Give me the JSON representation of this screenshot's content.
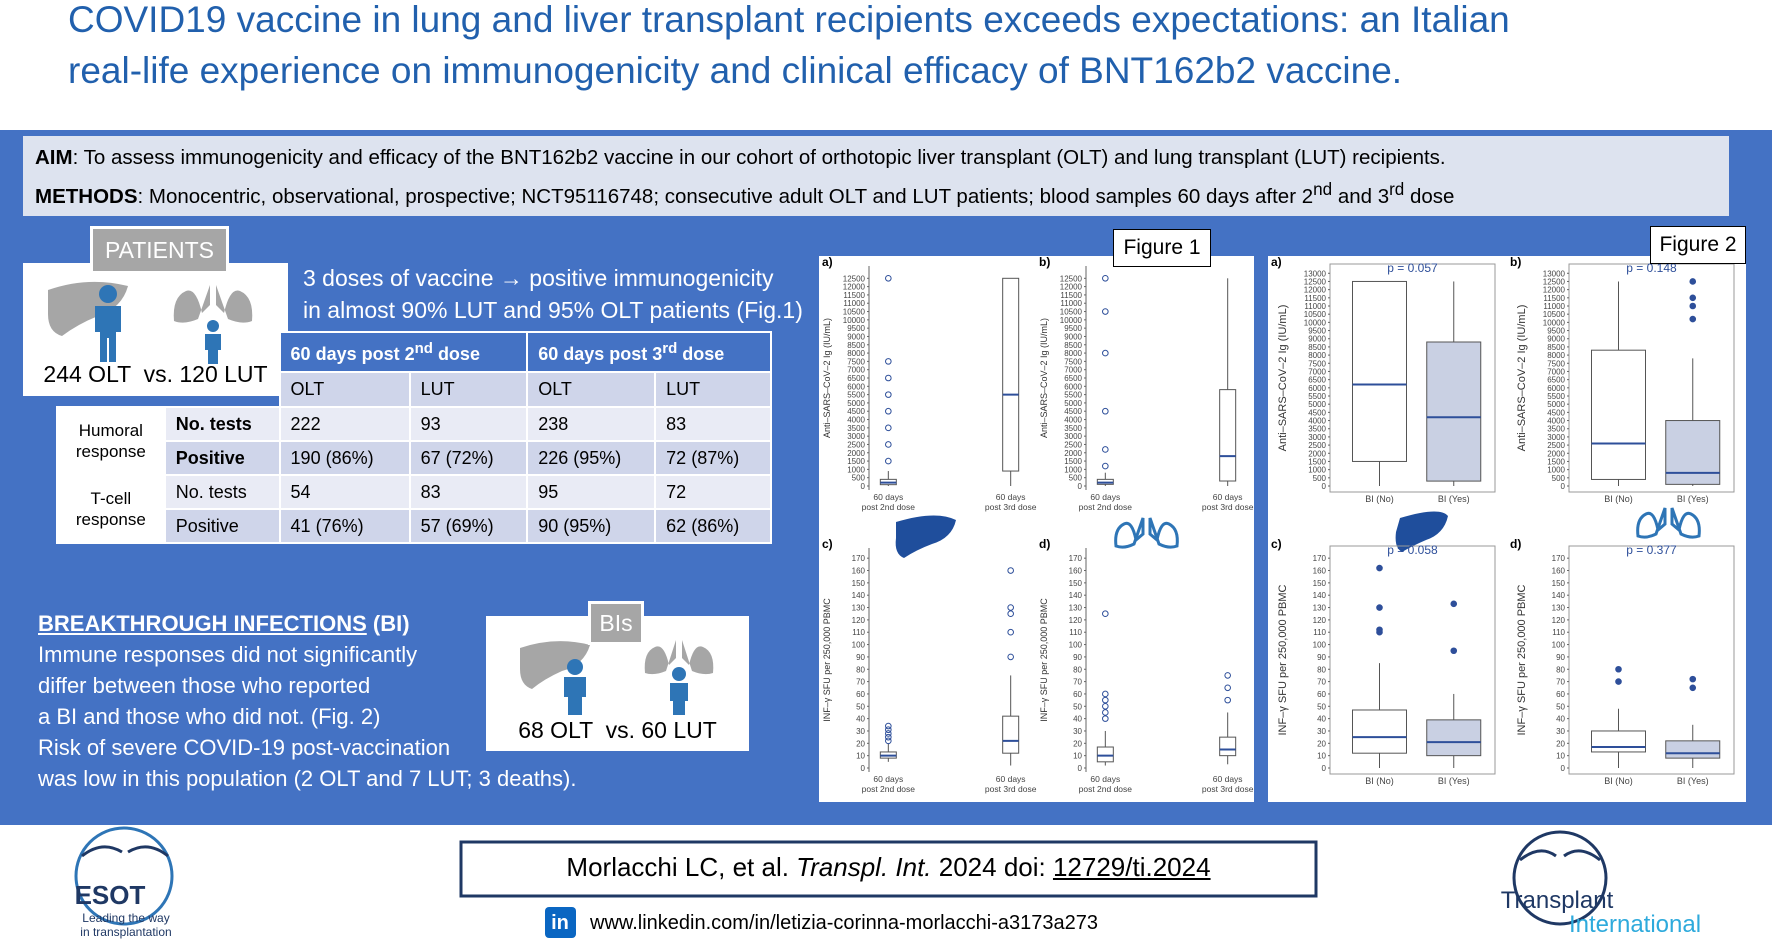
{
  "header": {
    "title_line1": "COVID19 vaccine in lung and liver transplant recipients exceeds expectations: an Italian",
    "title_line2": "real-life experience on immunogenicity and clinical efficacy of BNT162b2 vaccine."
  },
  "aim": {
    "label": "AIM",
    "text": ": To assess immunogenicity and efficacy of the BNT162b2 vaccine in our cohort of orthotopic liver transplant (OLT) and lung transplant (LUT) recipients."
  },
  "methods": {
    "label": "METHODS",
    "text": ": Monocentric, observational, prospective; NCT95116748; consecutive adult OLT and LUT patients; blood samples 60 days after 2",
    "sup1": "nd",
    "mid": " and 3",
    "sup2": "rd",
    "end": " dose"
  },
  "patients": {
    "tab": "PATIENTS",
    "summary": "244 OLT  vs. 120 LUT"
  },
  "highlight": {
    "line1": "3 doses of vaccine → positive immunogenicity",
    "line2": "in almost 90% LUT and 95% OLT patients (Fig.1)"
  },
  "table": {
    "header": [
      {
        "text": "60 days post 2",
        "sup": "nd",
        "end": " dose"
      },
      {
        "text": "60 days post 3",
        "sup": "rd",
        "end": " dose"
      }
    ],
    "subheader": [
      "OLT",
      "LUT",
      "OLT",
      "LUT"
    ],
    "groups": [
      {
        "name": [
          "Humoral",
          "response"
        ],
        "rows": [
          {
            "label": "No. tests",
            "values": [
              222,
              93,
              238,
              83
            ]
          },
          {
            "label": "Positive",
            "values": [
              "190 (86%)",
              "67 (72%)",
              "226 (95%)",
              "72 (87%)"
            ]
          }
        ]
      },
      {
        "name": [
          "T-cell",
          "response"
        ],
        "rows": [
          {
            "label": "No. tests",
            "values": [
              54,
              83,
              95,
              72
            ]
          },
          {
            "label": "Positive",
            "values": [
              "41 (76%)",
              "57 (69%)",
              "90 (95%)",
              "62 (86%)"
            ]
          }
        ]
      }
    ]
  },
  "bi": {
    "title": "BREAKTHROUGH INFECTIONS",
    "abbr": " (BI)",
    "lines": [
      "Immune responses did not significantly",
      "differ between those who reported",
      "a BI and those who did not. (Fig. 2)",
      "Risk of severe COVID-19 post-vaccination",
      "was low in this population (2 OLT and 7 LUT; 3 deaths)."
    ]
  },
  "bis": {
    "tab": "BIs",
    "summary": "68 OLT  vs. 60 LUT"
  },
  "figures": {
    "fig1": "Figure 1",
    "fig2": "Figure 2"
  },
  "footer": {
    "authors": "Morlacchi LC, et al. ",
    "journal": "Transpl. Int.",
    "year_doi": " 2024 doi: ",
    "doi": "12729/ti.2024",
    "linkedin_icon": "in",
    "linkedin": "www.linkedin.com/in/letizia-corinna-morlacchi-a3173a273",
    "esot": "ESOT",
    "esot_tag1": "Leading the way",
    "esot_tag2": "in transplantation",
    "ti1": "Transplant",
    "ti2": "International"
  },
  "chart_data": [
    {
      "type": "box",
      "label": "a)",
      "ylabel": "Anti–SARS–CoV–2 Ig (IU/mL)",
      "categories": [
        [
          "60 days",
          "post 2nd dose"
        ],
        [
          "60 days",
          "post 3rd dose"
        ]
      ],
      "ylim": [
        0,
        13000
      ],
      "yticks": [
        0,
        500,
        1000,
        1500,
        2000,
        2500,
        3000,
        3500,
        4000,
        4500,
        5000,
        5500,
        6000,
        6500,
        7000,
        7500,
        8000,
        8500,
        9000,
        9500,
        10000,
        10500,
        11000,
        11500,
        12000,
        12500
      ],
      "frame": false,
      "boxes": [
        {
          "min": 0,
          "q1": 80,
          "median": 200,
          "q3": 400,
          "max": 900,
          "color": "#ffffff",
          "outliers": [
            1500,
            2500,
            3500,
            4500,
            5500,
            6500,
            7500,
            12500
          ]
        },
        {
          "min": 0,
          "q1": 900,
          "median": 5500,
          "q3": 12500,
          "max": 12500,
          "color": "#ffffff",
          "outliers": []
        }
      ]
    },
    {
      "type": "box",
      "label": "b)",
      "ylabel": "Anti–SARS–CoV–2 Ig (IU/mL)",
      "categories": [
        [
          "60 days",
          "post 2nd dose"
        ],
        [
          "60 days",
          "post 3rd dose"
        ]
      ],
      "ylim": [
        0,
        13000
      ],
      "yticks": [
        0,
        500,
        1000,
        1500,
        2000,
        2500,
        3000,
        3500,
        4000,
        4500,
        5000,
        5500,
        6000,
        6500,
        7000,
        7500,
        8000,
        8500,
        9000,
        9500,
        10000,
        10500,
        11000,
        11500,
        12000,
        12500
      ],
      "frame": false,
      "boxes": [
        {
          "min": 0,
          "q1": 100,
          "median": 200,
          "q3": 400,
          "max": 800,
          "color": "#ffffff",
          "outliers": [
            1200,
            2200,
            4500,
            8000,
            10500,
            12500
          ]
        },
        {
          "min": 0,
          "q1": 300,
          "median": 1800,
          "q3": 5800,
          "max": 12500,
          "color": "#ffffff",
          "outliers": []
        }
      ]
    },
    {
      "type": "box",
      "label": "c)",
      "ylabel": "INF–γ SFU per 250,000 PBMC",
      "categories": [
        [
          "60 days",
          "post 2nd dose"
        ],
        [
          "60 days",
          "post 3rd dose"
        ]
      ],
      "ylim": [
        0,
        175
      ],
      "yticks": [
        0,
        10,
        20,
        30,
        40,
        50,
        60,
        70,
        80,
        90,
        100,
        110,
        120,
        130,
        140,
        150,
        160,
        170
      ],
      "frame": false,
      "boxes": [
        {
          "min": 5,
          "q1": 8,
          "median": 10,
          "q3": 13,
          "max": 20,
          "color": "#ffffff",
          "outliers": [
            22,
            25,
            28,
            31,
            34
          ]
        },
        {
          "min": 2,
          "q1": 12,
          "median": 22,
          "q3": 42,
          "max": 75,
          "color": "#ffffff",
          "outliers": [
            90,
            110,
            125,
            130,
            160
          ]
        }
      ]
    },
    {
      "type": "box",
      "label": "d)",
      "ylabel": "INF–γ SFU per 250,000 PBMC",
      "categories": [
        [
          "60 days",
          "post 2nd dose"
        ],
        [
          "60 days",
          "post 3rd dose"
        ]
      ],
      "ylim": [
        0,
        175
      ],
      "yticks": [
        0,
        10,
        20,
        30,
        40,
        50,
        60,
        70,
        80,
        90,
        100,
        110,
        120,
        130,
        140,
        150,
        160,
        170
      ],
      "frame": false,
      "boxes": [
        {
          "min": 2,
          "q1": 5,
          "median": 10,
          "q3": 17,
          "max": 30,
          "color": "#ffffff",
          "outliers": [
            40,
            45,
            50,
            55,
            60,
            125
          ]
        },
        {
          "min": 3,
          "q1": 10,
          "median": 15,
          "q3": 25,
          "max": 45,
          "color": "#ffffff",
          "outliers": [
            55,
            65,
            75
          ]
        }
      ]
    },
    {
      "type": "box",
      "label": "a)",
      "ylabel": "Anti–SARS–CoV–2 Ig (IU/mL)",
      "annotation": "p = 0.057",
      "categories": [
        "BI (No)",
        "BI (Yes)"
      ],
      "ylim": [
        0,
        13200
      ],
      "yticks": [
        0,
        500,
        1000,
        1500,
        2000,
        2500,
        3000,
        3500,
        4000,
        4500,
        5000,
        5500,
        6000,
        6500,
        7000,
        7500,
        8000,
        8500,
        9000,
        9500,
        10000,
        10500,
        11000,
        11500,
        12000,
        12500,
        13000
      ],
      "frame": true,
      "boxes": [
        {
          "min": 0,
          "q1": 1500,
          "median": 6200,
          "q3": 12500,
          "max": 12500,
          "color": "#ffffff",
          "outliers": []
        },
        {
          "min": 0,
          "q1": 300,
          "median": 4200,
          "q3": 8800,
          "max": 12500,
          "color": "#c9d0e3",
          "outliers": []
        }
      ]
    },
    {
      "type": "box",
      "label": "b)",
      "ylabel": "Anti–SARS–CoV–2 Ig (IU/mL)",
      "annotation": "p = 0.148",
      "categories": [
        "BI (No)",
        "BI (Yes)"
      ],
      "ylim": [
        0,
        13200
      ],
      "yticks": [
        0,
        500,
        1000,
        1500,
        2000,
        2500,
        3000,
        3500,
        4000,
        4500,
        5000,
        5500,
        6000,
        6500,
        7000,
        7500,
        8000,
        8500,
        9000,
        9500,
        10000,
        10500,
        11000,
        11500,
        12000,
        12500,
        13000
      ],
      "frame": true,
      "boxes": [
        {
          "min": 0,
          "q1": 400,
          "median": 2600,
          "q3": 8300,
          "max": 12500,
          "color": "#ffffff",
          "outliers": []
        },
        {
          "min": 0,
          "q1": 100,
          "median": 800,
          "q3": 4000,
          "max": 7800,
          "color": "#c9d0e3",
          "outliers": [
            10200,
            11000,
            11500,
            12500
          ]
        }
      ]
    },
    {
      "type": "box",
      "label": "c)",
      "ylabel": "INF–γ SFU per 250,000 PBMC",
      "annotation": "p = 0.058",
      "categories": [
        "BI (No)",
        "BI (Yes)"
      ],
      "ylim": [
        0,
        175
      ],
      "yticks": [
        0,
        10,
        20,
        30,
        40,
        50,
        60,
        70,
        80,
        90,
        100,
        110,
        120,
        130,
        140,
        150,
        160,
        170
      ],
      "frame": true,
      "boxes": [
        {
          "min": 0,
          "q1": 12,
          "median": 25,
          "q3": 47,
          "max": 85,
          "color": "#ffffff",
          "outliers": [
            110,
            112,
            130,
            162
          ]
        },
        {
          "min": 0,
          "q1": 10,
          "median": 21,
          "q3": 39,
          "max": 60,
          "color": "#c9d0e3",
          "outliers": [
            95,
            133
          ]
        }
      ]
    },
    {
      "type": "box",
      "label": "d)",
      "ylabel": "INF–γ SFU per 250,000 PBMC",
      "annotation": "p = 0.377",
      "categories": [
        "BI (No)",
        "BI (Yes)"
      ],
      "ylim": [
        0,
        175
      ],
      "yticks": [
        0,
        10,
        20,
        30,
        40,
        50,
        60,
        70,
        80,
        90,
        100,
        110,
        120,
        130,
        140,
        150,
        160,
        170
      ],
      "frame": true,
      "boxes": [
        {
          "min": 0,
          "q1": 13,
          "median": 17,
          "q3": 30,
          "max": 48,
          "color": "#ffffff",
          "outliers": [
            70,
            80
          ]
        },
        {
          "min": 0,
          "q1": 8,
          "median": 12,
          "q3": 22,
          "max": 35,
          "color": "#c9d0e3",
          "outliers": [
            65,
            72
          ]
        }
      ]
    }
  ]
}
